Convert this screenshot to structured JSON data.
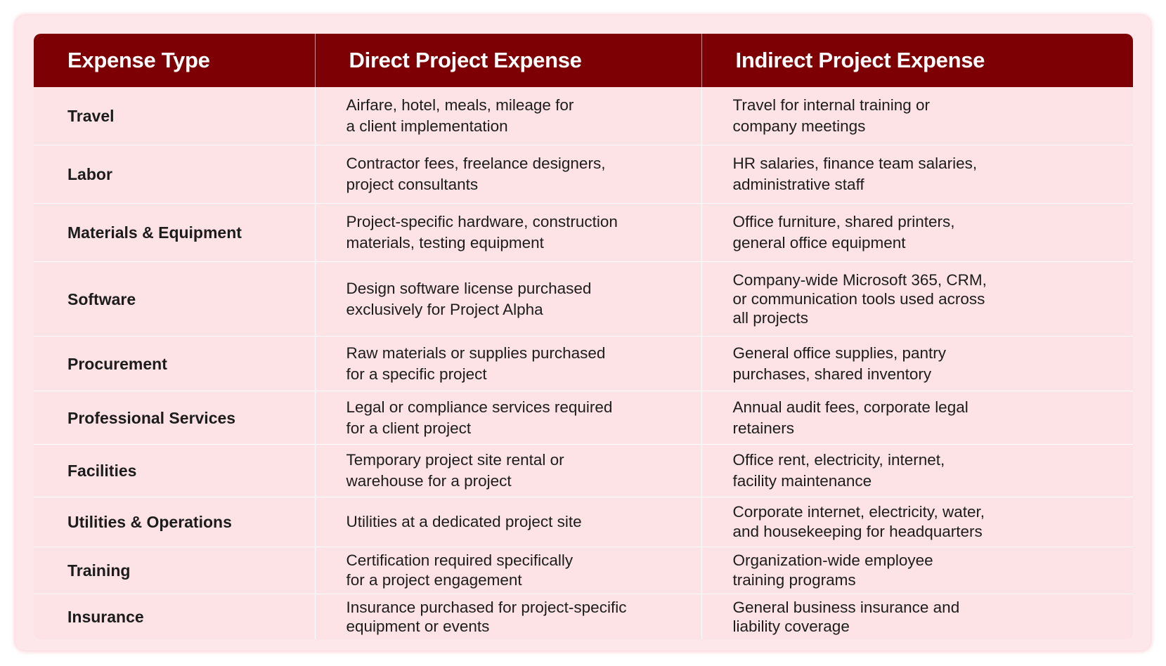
{
  "table": {
    "headers": [
      "Expense Type",
      "Direct Project Expense",
      "Indirect Project Expense"
    ],
    "rows": [
      {
        "type": "Travel",
        "direct": "Airfare, hotel, meals, mileage for\na client implementation",
        "indirect": "Travel for internal training or\ncompany meetings"
      },
      {
        "type": "Labor",
        "direct": "Contractor fees, freelance designers,\nproject consultants",
        "indirect": "HR salaries, finance team salaries,\nadministrative staff"
      },
      {
        "type": "Materials & Equipment",
        "direct": "Project-specific hardware, construction\nmaterials, testing equipment",
        "indirect": "Office furniture, shared printers,\ngeneral office equipment"
      },
      {
        "type": "Software",
        "direct": "Design software license purchased\nexclusively for Project Alpha",
        "indirect": "Company-wide Microsoft 365, CRM,\nor communication tools used across\nall projects"
      },
      {
        "type": "Procurement",
        "direct": "Raw materials or supplies purchased\nfor a specific project",
        "indirect": "General office supplies, pantry\npurchases, shared inventory"
      },
      {
        "type": "Professional Services",
        "direct": "Legal or compliance services required\nfor a client project",
        "indirect": "Annual audit fees, corporate legal\nretainers"
      },
      {
        "type": "Facilities",
        "direct": "Temporary project site rental or\nwarehouse for a project",
        "indirect": "Office rent, electricity, internet,\nfacility maintenance"
      },
      {
        "type": "Utilities & Operations",
        "direct": "Utilities at a dedicated project site",
        "indirect": "Corporate internet, electricity, water,\nand housekeeping for headquarters"
      },
      {
        "type": "Training",
        "direct": "Certification required specifically\nfor a project engagement",
        "indirect": "Organization-wide employee\ntraining programs"
      },
      {
        "type": "Insurance",
        "direct": "Insurance purchased for project-specific\nequipment or events",
        "indirect": "General business insurance and\nliability coverage"
      }
    ]
  },
  "colors": {
    "header_bg": "#7d0104",
    "header_text": "#ffffff",
    "body_bg": "#fde3e6",
    "card_bg": "#fde7ea"
  }
}
